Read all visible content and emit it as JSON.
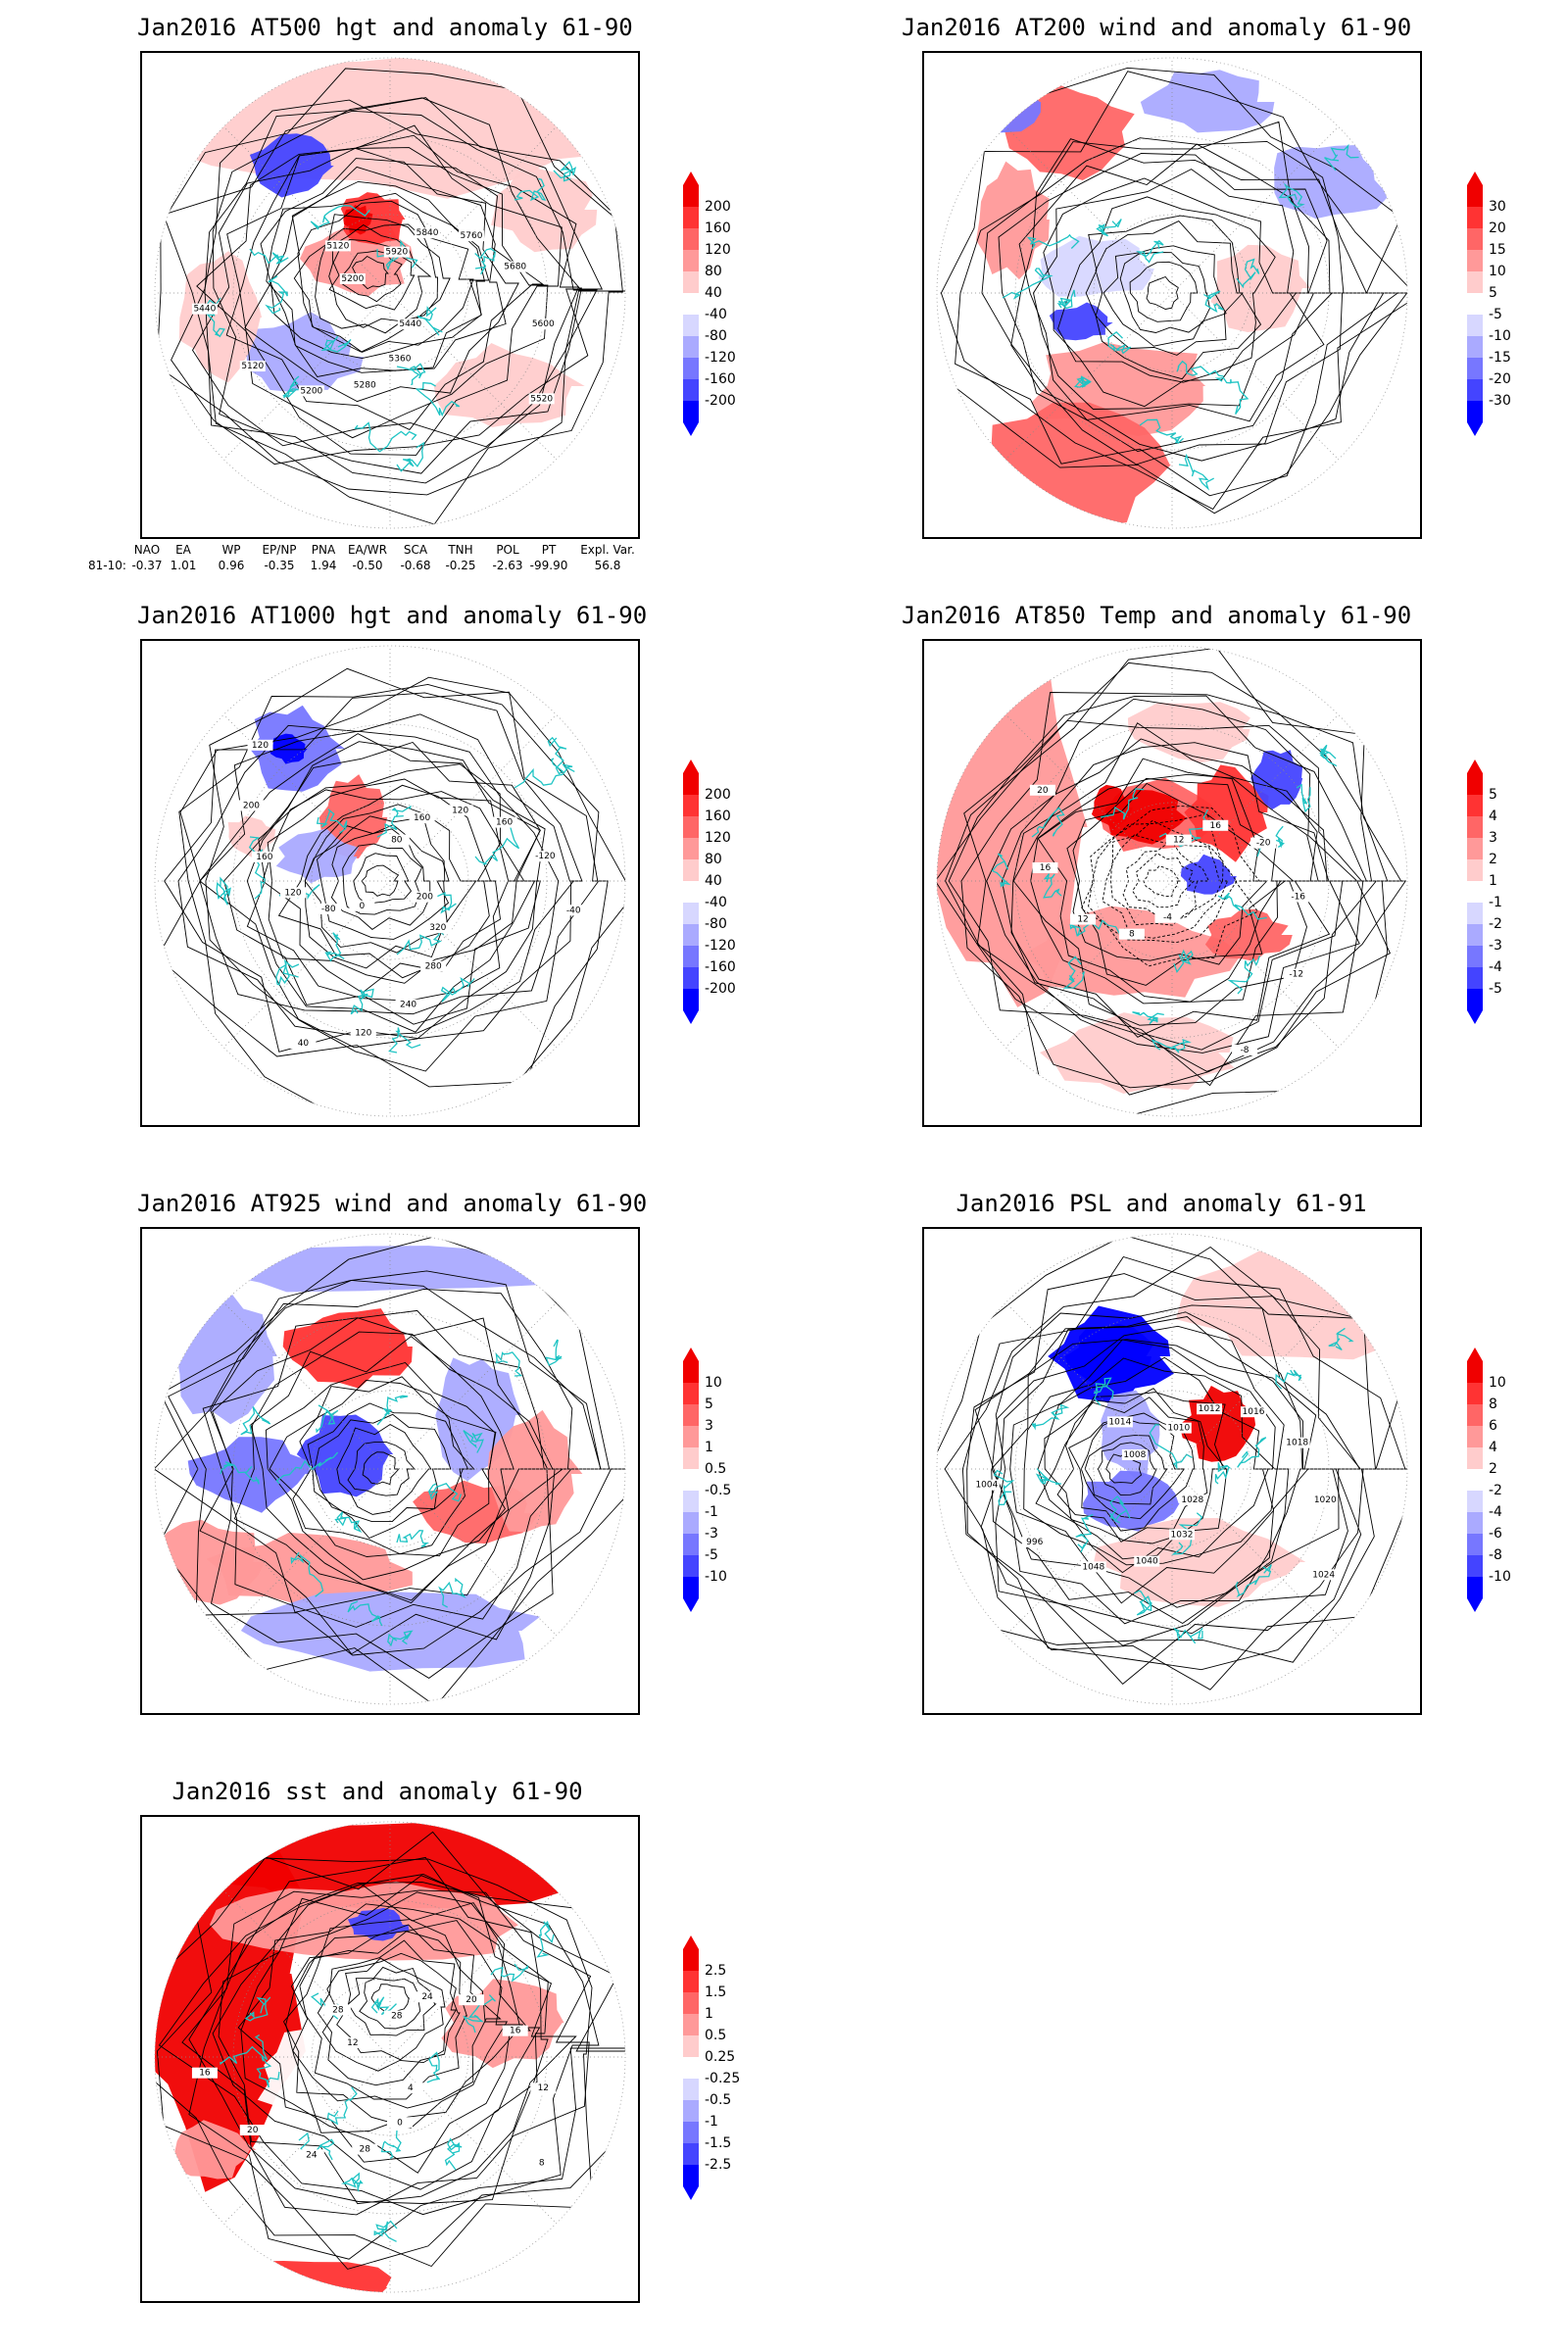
{
  "panels": [
    {
      "id": "p500",
      "title": "Jan2016 AT500 hgt and anomaly 61-90",
      "colorbar": [
        "200",
        "160",
        "120",
        "80",
        "40",
        "-40",
        "-80",
        "-120",
        "-160",
        "-200"
      ],
      "contour_labels": [
        "5920",
        "5840",
        "5760",
        "5680",
        "5600",
        "5520",
        "5440",
        "5360",
        "5280",
        "5200",
        "5120",
        "5440",
        "5200",
        "5120"
      ]
    },
    {
      "id": "p200",
      "title": "Jan2016 AT200 wind and anomaly 61-90",
      "colorbar": [
        "30",
        "20",
        "15",
        "10",
        "5",
        "-5",
        "-10",
        "-15",
        "-20",
        "-30"
      ],
      "contour_labels": []
    },
    {
      "id": "p1000",
      "title": "Jan2016 AT1000 hgt and anomaly 61-90",
      "colorbar": [
        "200",
        "160",
        "120",
        "80",
        "40",
        "-40",
        "-80",
        "-120",
        "-160",
        "-200"
      ],
      "contour_labels": [
        "80",
        "160",
        "120",
        "160",
        "-120",
        "-40",
        "200",
        "320",
        "280",
        "240",
        "120",
        "40",
        "0",
        "-80",
        "120",
        "160",
        "200",
        "120"
      ]
    },
    {
      "id": "p850",
      "title": "Jan2016 AT850 Temp and anomaly 61-90",
      "colorbar": [
        "5",
        "4",
        "3",
        "2",
        "1",
        "-1",
        "-2",
        "-3",
        "-4",
        "-5"
      ],
      "contour_labels": [
        "12",
        "16",
        "-20",
        "-16",
        "-12",
        "-8",
        "-4",
        "8",
        "12",
        "16",
        "20"
      ]
    },
    {
      "id": "p925",
      "title": "Jan2016 AT925 wind and anomaly 61-90",
      "colorbar": [
        "10",
        "5",
        "3",
        "1",
        "0.5",
        "-0.5",
        "-1",
        "-3",
        "-5",
        "-10"
      ],
      "contour_labels": []
    },
    {
      "id": "ppsl",
      "title": "Jan2016 PSL and anomaly 61-91",
      "colorbar": [
        "10",
        "8",
        "6",
        "4",
        "2",
        "-2",
        "-4",
        "-6",
        "-8",
        "-10"
      ],
      "contour_labels": [
        "1010",
        "1012",
        "1016",
        "1018",
        "1020",
        "1024",
        "1028",
        "1032",
        "1040",
        "1048",
        "996",
        "1004",
        "1008",
        "1014"
      ]
    },
    {
      "id": "psst",
      "title": "Jan2016 sst and anomaly 61-90",
      "colorbar": [
        "2.5",
        "1.5",
        "1",
        "0.5",
        "0.25",
        "-0.25",
        "-0.5",
        "-1",
        "-1.5",
        "-2.5"
      ],
      "contour_labels": [
        "28",
        "24",
        "20",
        "16",
        "12",
        "8",
        "4",
        "0",
        "28",
        "24",
        "20",
        "16",
        "12",
        "28"
      ]
    }
  ],
  "teleconnections": {
    "headers": [
      "NAO",
      "EA",
      "WP",
      "EP/NP",
      "PNA",
      "EA/WR",
      "SCA",
      "TNH",
      "POL",
      "PT",
      "Expl. Var."
    ],
    "row_label": "81-10:",
    "values": [
      "-0.37",
      "1.01",
      "0.96",
      "-0.35",
      "1.94",
      "-0.50",
      "-0.68",
      "-0.25",
      "-2.63",
      "-99.90",
      "56.8"
    ]
  },
  "colors": {
    "land_outline": "#1fc4c4",
    "positive_scale": [
      "#f00000",
      "#ff3333",
      "#ff6666",
      "#ff9999",
      "#ffcccc"
    ],
    "negative_scale": [
      "#d7d7ff",
      "#aaaaff",
      "#7777ff",
      "#4444ff",
      "#0000ff"
    ],
    "contour": "#000000"
  }
}
